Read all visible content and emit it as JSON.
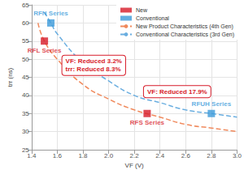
{
  "chart_data": {
    "type": "scatter",
    "x_label": "VF (V)",
    "y_label": "trr (ns)",
    "xlim": [
      1.4,
      3.0
    ],
    "xticks": [
      1.4,
      1.6,
      1.8,
      {
        "value": 2,
        "label": "2.0"
      },
      2.2,
      2.4,
      2.6,
      2.8,
      {
        "value": 3,
        "label": "3.0"
      }
    ],
    "ylim": [
      25,
      65
    ],
    "yticks": [
      25,
      30,
      35,
      40,
      45,
      50,
      55,
      60,
      65
    ],
    "grid": true,
    "legend": "top-right",
    "series": [
      {
        "name": "New",
        "type": "scatter",
        "marker": "square",
        "color": "#d71a28",
        "x": [
          1.5,
          2.3
        ],
        "values": [
          55,
          35
        ],
        "point_labels": [
          "RFL Series",
          "RFS Series"
        ]
      },
      {
        "name": "Conventional",
        "type": "scatter",
        "marker": "square",
        "color": "#3b9ad9",
        "x": [
          1.55,
          2.8
        ],
        "values": [
          60,
          35
        ],
        "point_labels": [
          "RFN Series",
          "RFUH Series"
        ]
      },
      {
        "name": "New Product Characteristics (4th Gen)",
        "type": "line",
        "line_style": "dashed",
        "color": "#f08a5d",
        "x": [
          1.45,
          1.5,
          1.6,
          1.8,
          2.0,
          2.2,
          2.4,
          2.6,
          2.8,
          3.0
        ],
        "values": [
          60,
          55,
          50,
          43,
          39,
          36,
          34,
          32,
          31,
          30
        ]
      },
      {
        "name": "Conventional Characteristics (3rd Gen)",
        "type": "line",
        "line_style": "dashed",
        "color": "#6aaee0",
        "x": [
          1.5,
          1.55,
          1.6,
          1.8,
          2.0,
          2.2,
          2.4,
          2.6,
          2.8,
          3.0
        ],
        "values": [
          63,
          60,
          57,
          49,
          44,
          40,
          38,
          36,
          35,
          34
        ]
      }
    ],
    "annotations": [
      [
        "VF: Reduced 3.2%",
        "trr: Reduced 8.3%"
      ],
      [
        "VF: Reduced 17.9%"
      ]
    ]
  }
}
